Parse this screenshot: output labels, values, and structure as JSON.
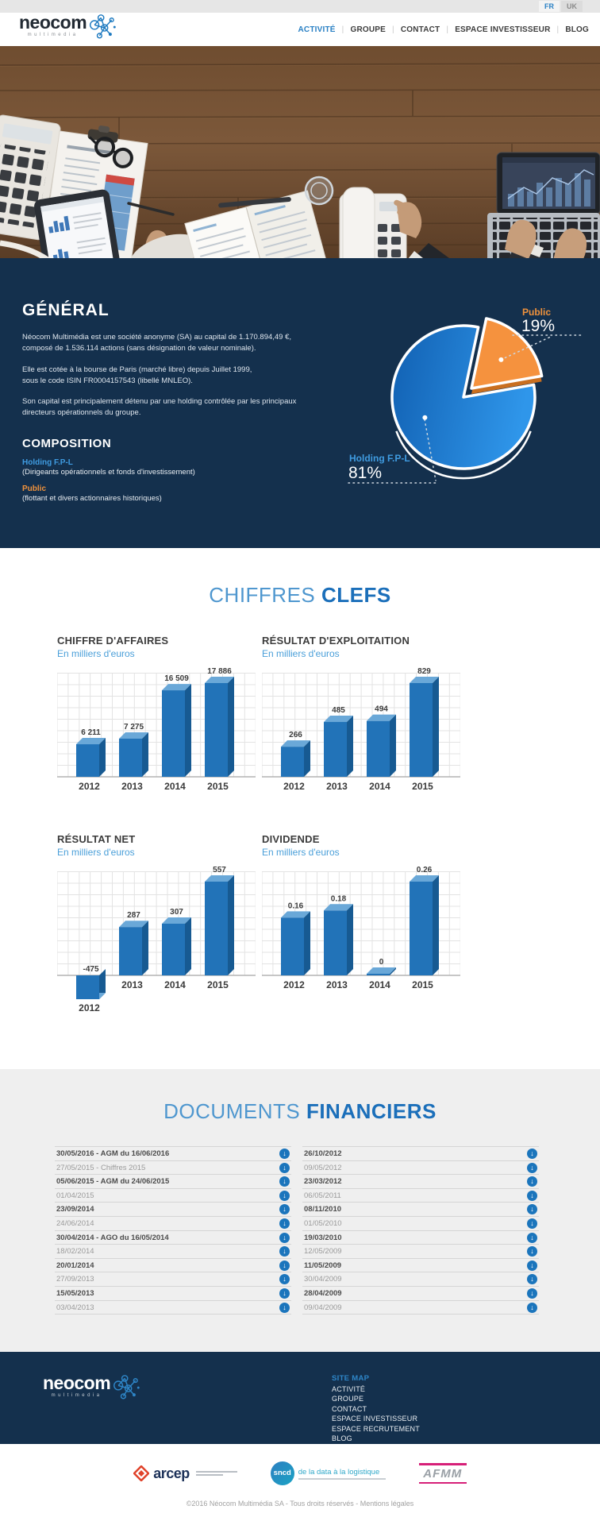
{
  "colors": {
    "navy": "#14304d",
    "blue": "#1b75bc",
    "light_blue": "#4f97cf",
    "orange": "#f0923c",
    "bar_blue": "#2273b8"
  },
  "topbar": {
    "languages": [
      {
        "label": "FR",
        "active": true
      },
      {
        "label": "UK",
        "active": false
      }
    ]
  },
  "header": {
    "logo": {
      "name": "neocom",
      "tagline": "multimedia"
    },
    "nav": [
      {
        "label": "ACTIVITÉ",
        "active": true
      },
      {
        "label": "GROUPE",
        "active": false
      },
      {
        "label": "CONTACT",
        "active": false
      },
      {
        "label": "ESPACE INVESTISSEUR",
        "active": false
      },
      {
        "label": "BLOG",
        "active": false
      }
    ]
  },
  "general": {
    "title": "GÉNÉRAL",
    "paragraphs": [
      "Néocom Multimédia est une société anonyme (SA) au capital de 1.170.894,49 €,\ncomposé de 1.536.114 actions (sans désignation de valeur nominale).",
      "Elle est cotée à la bourse de Paris (marché libre) depuis Juillet 1999,\nsous le code ISIN FR0004157543 (libellé MNLEO).",
      "Son capital est principalement détenu par une holding contrôlée par les principaux\ndirecteurs opérationnels du groupe."
    ],
    "composition": {
      "title": "COMPOSITION",
      "items": [
        {
          "name": "Holding F.P-L",
          "desc": "(Dirigeants opérationnels et fonds d'investissement)",
          "color": "#3f9be0"
        },
        {
          "name": "Public",
          "desc": "(flottant et divers actionnaires historiques)",
          "color": "#f0923c"
        }
      ]
    }
  },
  "chiffres": {
    "title_light": "CHIFFRES",
    "title_bold": "CLEFS"
  },
  "chart_data": [
    {
      "type": "pie",
      "labels": [
        "Holding F.P-L",
        "Public"
      ],
      "values": [
        81,
        19
      ],
      "display": [
        "81%",
        "19%"
      ],
      "colors": [
        "#1f79d3",
        "#f5923e"
      ],
      "legend_position": "callout"
    },
    {
      "type": "bar",
      "title": "CHIFFRE D'AFFAIRES",
      "subtitle": "En milliers d'euros",
      "categories": [
        "2012",
        "2013",
        "2014",
        "2015"
      ],
      "values": [
        6211,
        7275,
        16509,
        17886
      ],
      "labels": [
        "6 211",
        "7 275",
        "16 509",
        "17 886"
      ],
      "grid": true
    },
    {
      "type": "bar",
      "title": "RÉSULTAT D'EXPLOITAITION",
      "subtitle": "En milliers d'euros",
      "categories": [
        "2012",
        "2013",
        "2014",
        "2015"
      ],
      "values": [
        266,
        485,
        494,
        829
      ],
      "labels": [
        "266",
        "485",
        "494",
        "829"
      ],
      "grid": true
    },
    {
      "type": "bar",
      "title": "RÉSULTAT NET",
      "subtitle": "En milliers d'euros",
      "categories": [
        "2012",
        "2013",
        "2014",
        "2015"
      ],
      "values": [
        -475,
        287,
        307,
        557
      ],
      "labels": [
        "-475",
        "287",
        "307",
        "557"
      ],
      "grid": true
    },
    {
      "type": "bar",
      "title": "DIVIDENDE",
      "subtitle": "En milliers d'euros",
      "categories": [
        "2012",
        "2013",
        "2014",
        "2015"
      ],
      "values": [
        0.16,
        0.18,
        0,
        0.26
      ],
      "labels": [
        "0.16",
        "0.18",
        "0",
        "0.26"
      ],
      "grid": true
    }
  ],
  "documents": {
    "title_light": "DOCUMENTS",
    "title_bold": "FINANCIERS",
    "left": [
      "30/05/2016 - AGM du 16/06/2016",
      "27/05/2015 - Chiffres 2015",
      "05/06/2015 - AGM du 24/06/2015",
      "01/04/2015",
      "23/09/2014",
      "24/06/2014",
      "30/04/2014 - AGO du 16/05/2014",
      "18/02/2014",
      "20/01/2014",
      "27/09/2013",
      "15/05/2013",
      "03/04/2013"
    ],
    "right": [
      "26/10/2012",
      "09/05/2012",
      "23/03/2012",
      "06/05/2011",
      "08/11/2010",
      "01/05/2010",
      "19/03/2010",
      "12/05/2009",
      "11/05/2009",
      "30/04/2009",
      "28/04/2009",
      "09/04/2009"
    ]
  },
  "footer": {
    "sitemap_title": "SITE MAP",
    "links": [
      "ACTIVITÉ",
      "GROUPE",
      "CONTACT",
      "ESPACE INVESTISSEUR",
      "ESPACE RECRUTEMENT",
      "BLOG"
    ],
    "partners": [
      {
        "name": "arcep"
      },
      {
        "name": "sncd",
        "tagline": "de la data à la logistique"
      },
      {
        "name": "AFMM"
      }
    ],
    "copyright": {
      "text": "©2016 Néocom Multimédia SA - Tous droits réservés - ",
      "link": "Mentions légales"
    }
  }
}
